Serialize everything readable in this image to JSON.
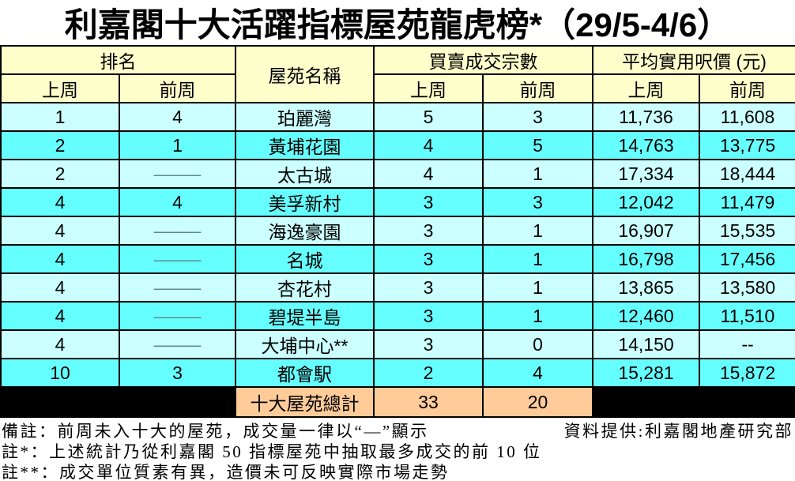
{
  "title": "利嘉閣十大活躍指標屋苑龍虎榜*（29/5-4/6）",
  "colors": {
    "header_bg": "#FFFFCC",
    "row_light": "#CCFFFF",
    "row_bright": "#66FFFF",
    "total_bg": "#FFCC99",
    "filler_bg": "#000000",
    "border": "#000000"
  },
  "table": {
    "group_headers": {
      "rank": "排名",
      "estate": "屋苑名稱",
      "transactions": "買賣成交宗數",
      "price": "平均實用呎價 (元)"
    },
    "sub_headers": {
      "last_week": "上周",
      "prev_week": "前周"
    },
    "rows": [
      {
        "rank_lw": "1",
        "rank_pw": "4",
        "estate": "珀麗灣",
        "tx_lw": "5",
        "tx_pw": "3",
        "price_lw": "11,736",
        "price_pw": "11,608"
      },
      {
        "rank_lw": "2",
        "rank_pw": "1",
        "estate": "黃埔花園",
        "tx_lw": "4",
        "tx_pw": "5",
        "price_lw": "14,763",
        "price_pw": "13,775"
      },
      {
        "rank_lw": "2",
        "rank_pw": "—",
        "estate": "太古城",
        "tx_lw": "4",
        "tx_pw": "1",
        "price_lw": "17,334",
        "price_pw": "18,444"
      },
      {
        "rank_lw": "4",
        "rank_pw": "4",
        "estate": "美孚新村",
        "tx_lw": "3",
        "tx_pw": "3",
        "price_lw": "12,042",
        "price_pw": "11,479"
      },
      {
        "rank_lw": "4",
        "rank_pw": "—",
        "estate": "海逸豪園",
        "tx_lw": "3",
        "tx_pw": "1",
        "price_lw": "16,907",
        "price_pw": "15,535"
      },
      {
        "rank_lw": "4",
        "rank_pw": "—",
        "estate": "名城",
        "tx_lw": "3",
        "tx_pw": "1",
        "price_lw": "16,798",
        "price_pw": "17,456"
      },
      {
        "rank_lw": "4",
        "rank_pw": "—",
        "estate": "杏花村",
        "tx_lw": "3",
        "tx_pw": "1",
        "price_lw": "13,865",
        "price_pw": "13,580"
      },
      {
        "rank_lw": "4",
        "rank_pw": "—",
        "estate": "碧堤半島",
        "tx_lw": "3",
        "tx_pw": "1",
        "price_lw": "12,460",
        "price_pw": "11,510"
      },
      {
        "rank_lw": "4",
        "rank_pw": "—",
        "estate": "大埔中心**",
        "tx_lw": "3",
        "tx_pw": "0",
        "price_lw": "14,150",
        "price_pw": "--"
      },
      {
        "rank_lw": "10",
        "rank_pw": "3",
        "estate": "都會駅",
        "tx_lw": "2",
        "tx_pw": "4",
        "price_lw": "15,281",
        "price_pw": "15,872"
      }
    ],
    "total": {
      "label": "十大屋苑總計",
      "tx_lw": "33",
      "tx_pw": "20"
    }
  },
  "footer": {
    "note1_left": "備註：前周未入十大的屋苑，成交量一律以“—”顯示",
    "note1_right": "資料提供:利嘉閣地產研究部",
    "note2": "註*：上述統計乃從利嘉閣 50 指標屋苑中抽取最多成交的前 10 位",
    "note3": "註**：成交單位質素有異，造價未可反映實際市場走勢"
  }
}
